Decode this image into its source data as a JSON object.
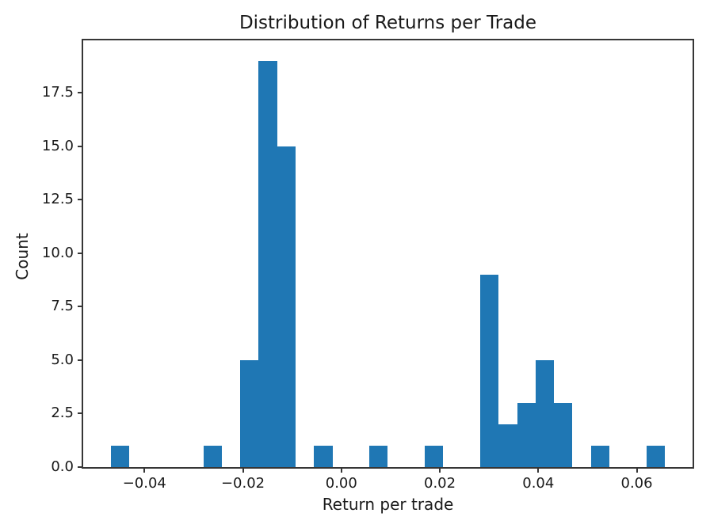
{
  "chart_data": {
    "type": "bar",
    "subtype": "histogram",
    "title": "Distribution of Returns per Trade",
    "xlabel": "Return per trade",
    "ylabel": "Count",
    "bar_color": "#1f77b4",
    "grid": false,
    "legend": "none",
    "xlim": [
      -0.05244,
      0.07134
    ],
    "ylim": [
      0,
      19.95
    ],
    "bin_edges": [
      -0.0468,
      -0.04305,
      -0.0393,
      -0.03555,
      -0.0318,
      -0.02805,
      -0.0243,
      -0.02055,
      -0.0168,
      -0.01305,
      -0.0093,
      -0.00555,
      -0.0018,
      0.00195,
      0.0057,
      0.00945,
      0.0132,
      0.01695,
      0.0207,
      0.02445,
      0.0282,
      0.03195,
      0.0357,
      0.03945,
      0.0432,
      0.04695,
      0.0507,
      0.05445,
      0.0582,
      0.06195,
      0.0657
    ],
    "counts": [
      1,
      0,
      0,
      0,
      0,
      1,
      0,
      5,
      19,
      15,
      0,
      1,
      0,
      0,
      1,
      0,
      0,
      1,
      0,
      0,
      9,
      2,
      3,
      5,
      3,
      0,
      1,
      0,
      0,
      1
    ],
    "x_ticks": {
      "values": [
        -0.04,
        -0.02,
        0.0,
        0.02,
        0.04,
        0.06
      ],
      "labels": [
        "−0.04",
        "−0.02",
        "0.00",
        "0.02",
        "0.04",
        "0.06"
      ]
    },
    "y_ticks": {
      "values": [
        0,
        2.5,
        5,
        7.5,
        10,
        12.5,
        15,
        17.5
      ],
      "labels": [
        "0.0",
        "2.5",
        "5.0",
        "7.5",
        "10.0",
        "12.5",
        "15.0",
        "17.5"
      ]
    },
    "colors": {
      "bar": "#1f77b4",
      "spine": "#363636",
      "text": "#1a1a1a",
      "background": "#ffffff"
    }
  }
}
